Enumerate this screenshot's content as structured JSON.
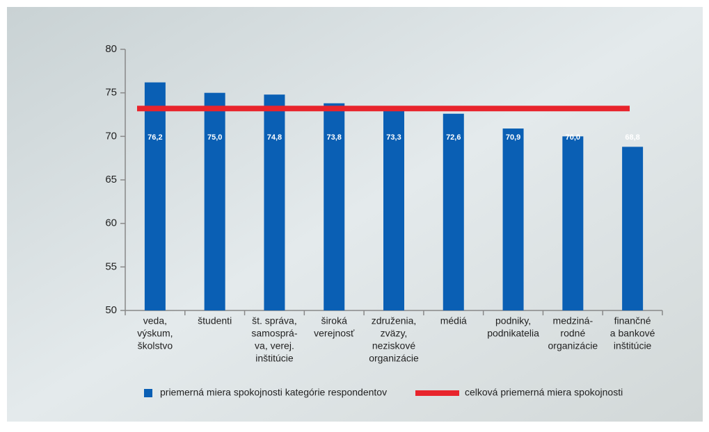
{
  "chart_data": {
    "type": "bar",
    "categories": [
      [
        "veda,",
        "výskum,",
        "školstvo"
      ],
      [
        "študenti"
      ],
      [
        "št. správa,",
        "samosprá-",
        "va, verej.",
        "inštitúcie"
      ],
      [
        "široká",
        "verejnosť"
      ],
      [
        "združenia,",
        "zväzy,",
        "neziskové",
        "organizácie"
      ],
      [
        "médiá"
      ],
      [
        "podniky,",
        "podnikatelia"
      ],
      [
        "medziná-",
        "rodné",
        "organizácie"
      ],
      [
        "finančné",
        "a bankové",
        "inštitúcie"
      ]
    ],
    "series": [
      {
        "name": "priemerná miera spokojnosti kategórie respondentov",
        "color": "#0a5fb4",
        "values": [
          76.2,
          75.0,
          74.8,
          73.8,
          73.3,
          72.6,
          70.9,
          70.0,
          68.8
        ],
        "value_labels": [
          "76,2",
          "75,0",
          "74,8",
          "73,8",
          "73,3",
          "72,6",
          "70,9",
          "70,0",
          "68,8"
        ]
      }
    ],
    "reference_line": {
      "name": "celková priemerná miera spokojnosti",
      "value": 73.2,
      "color": "#e8242c"
    },
    "ylim": [
      50,
      80
    ],
    "yticks": [
      50,
      55,
      60,
      65,
      70,
      75,
      80
    ],
    "legend": "bottom"
  }
}
